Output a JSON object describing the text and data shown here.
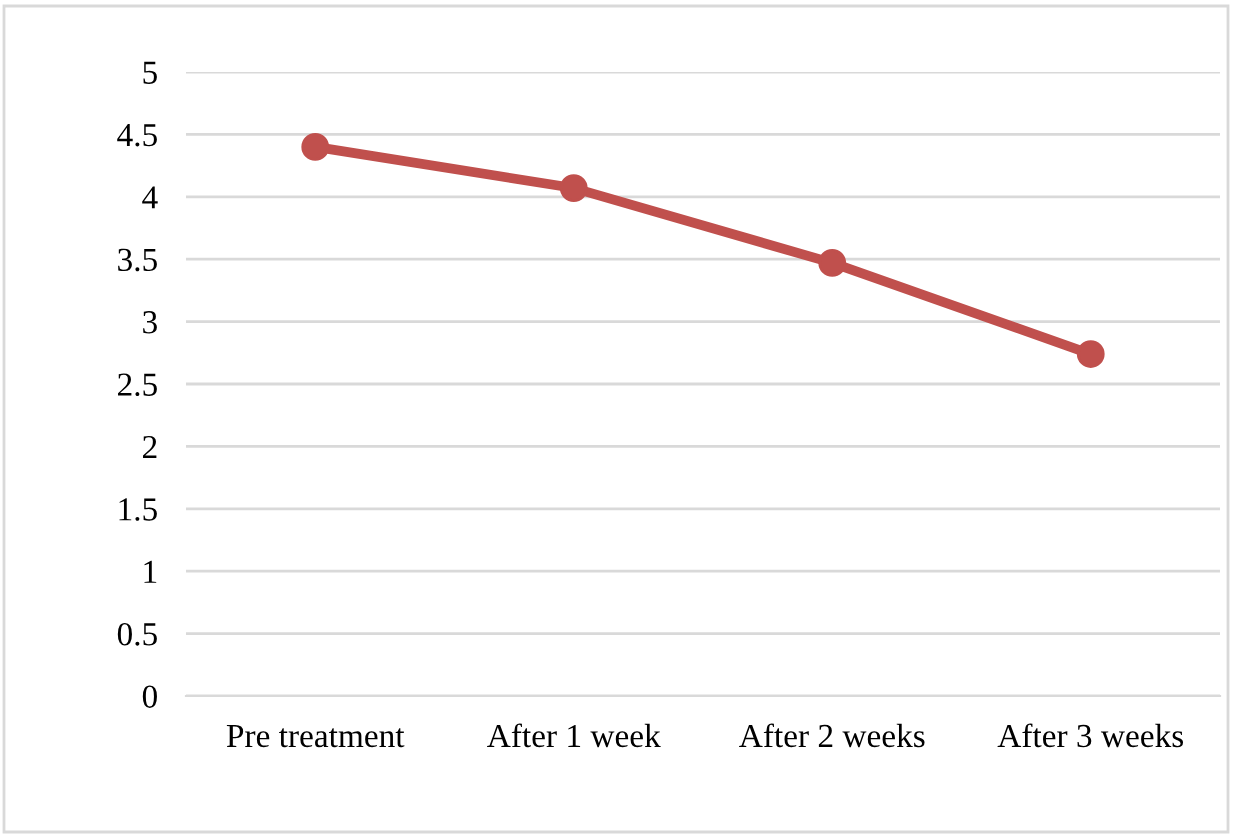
{
  "chart_data": {
    "type": "line",
    "categories": [
      "Pre treatment",
      "After 1 week",
      "After 2 weeks",
      "After 3 weeks"
    ],
    "series": [
      {
        "color": "#c0504d",
        "values": [
          4.4,
          4.07,
          3.47,
          2.74
        ]
      }
    ],
    "ylim": [
      0,
      5
    ],
    "yticks": [
      0,
      0.5,
      1,
      1.5,
      2,
      2.5,
      3,
      3.5,
      4,
      4.5,
      5
    ],
    "grid": "y",
    "marker": "circle",
    "line_style": "solid"
  }
}
